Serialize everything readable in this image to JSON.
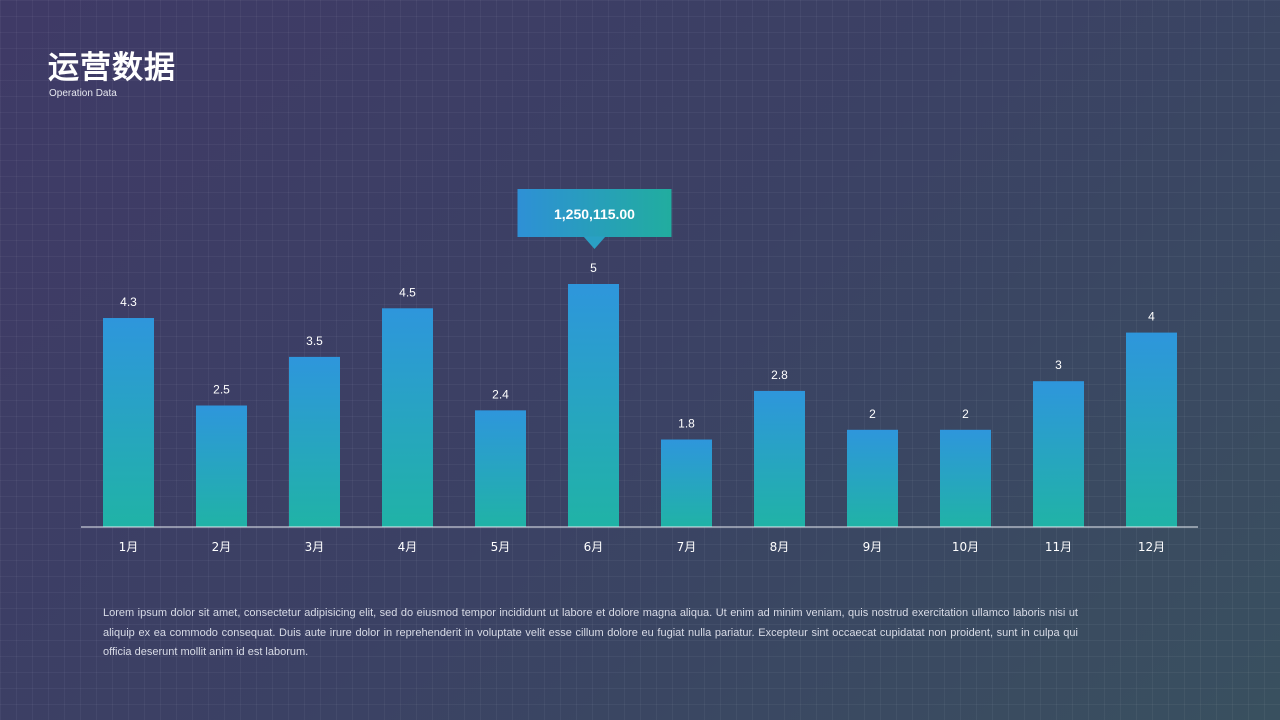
{
  "header": {
    "title": "运营数据",
    "subtitle": "Operation Data"
  },
  "body_text": "Lorem ipsum dolor sit amet, consectetur adipisicing elit, sed do eiusmod tempor incididunt ut labore et dolore magna aliqua. Ut enim ad minim veniam, quis nostrud exercitation ullamco laboris nisi ut aliquip ex ea commodo consequat. Duis aute irure dolor in reprehenderit in voluptate velit esse cillum dolore eu fugiat nulla pariatur. Excepteur sint occaecat cupidatat non proident, sunt in culpa qui officia deserunt mollit anim id est laborum.",
  "colors": {
    "bar_top": "#2e96dc",
    "bar_bottom": "#20b3a6",
    "callout_left": "#2e90d6",
    "callout_right": "#21ad9f"
  },
  "chart_data": {
    "type": "bar",
    "categories": [
      "1月",
      "2月",
      "3月",
      "4月",
      "5月",
      "6月",
      "7月",
      "8月",
      "9月",
      "10月",
      "11月",
      "12月"
    ],
    "values": [
      4.3,
      2.5,
      3.5,
      4.5,
      2.4,
      5,
      1.8,
      2.8,
      2,
      2,
      3,
      4
    ],
    "data_labels": [
      "4.3",
      "2.5",
      "3.5",
      "4.5",
      "2.4",
      "5",
      "1.8",
      "2.8",
      "2",
      "2",
      "3",
      "4"
    ],
    "ylim": [
      0,
      5
    ],
    "grid": false,
    "callout": {
      "category": "6月",
      "text": "1,250,115.00"
    }
  }
}
